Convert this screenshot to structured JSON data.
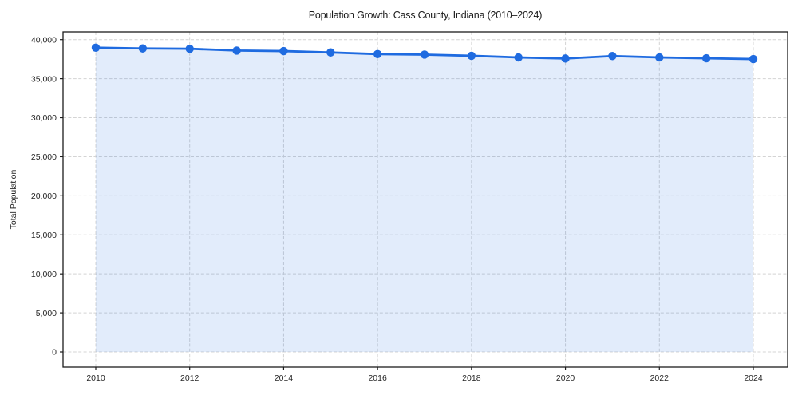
{
  "chart_data": {
    "type": "line",
    "title": "Population Growth: Cass County, Indiana (2010–2024)",
    "xlabel": "",
    "ylabel": "Total Population",
    "x": [
      2010,
      2011,
      2012,
      2013,
      2014,
      2015,
      2016,
      2017,
      2018,
      2019,
      2020,
      2021,
      2022,
      2023,
      2024
    ],
    "series": [
      {
        "name": "Total Population",
        "values": [
          38970,
          38870,
          38830,
          38600,
          38530,
          38360,
          38150,
          38080,
          37930,
          37720,
          37580,
          37900,
          37720,
          37610,
          37510
        ]
      }
    ],
    "ylim": [
      0,
      40000
    ],
    "yticks": [
      0,
      5000,
      10000,
      15000,
      20000,
      25000,
      30000,
      35000,
      40000
    ],
    "xticks": [
      2010,
      2012,
      2014,
      2016,
      2018,
      2020,
      2022,
      2024
    ],
    "grid": "both",
    "grid_style": "dashed",
    "legend": "none",
    "marker": "circle",
    "area_fill": true,
    "colors": {
      "line": "#1f6be0",
      "marker": "#1f6be0",
      "fill": "rgba(31, 107, 224, 0.13)",
      "grid": "#d4d4d4",
      "spine": "#1c1c1c",
      "text": "#262626",
      "background": "#ffffff"
    }
  }
}
